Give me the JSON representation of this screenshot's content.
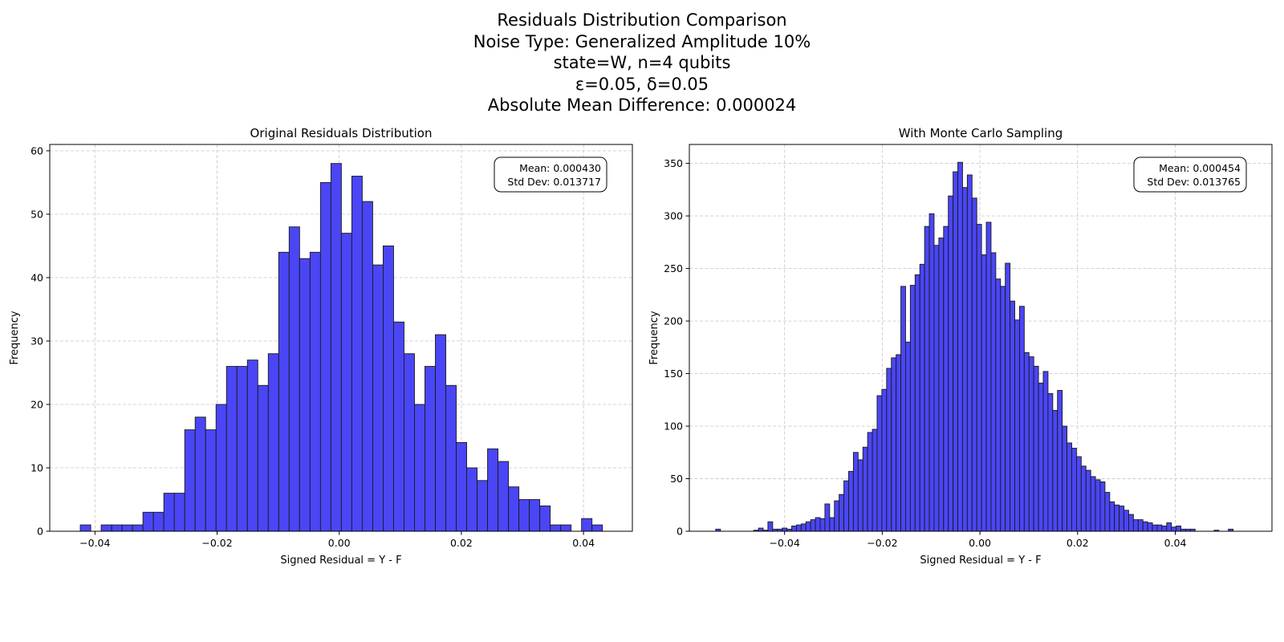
{
  "figure": {
    "title_lines": [
      "Residuals Distribution Comparison",
      "Noise Type: Generalized Amplitude 10%",
      "state=W, n=4 qubits",
      "ε=0.05, δ=0.05",
      "Absolute Mean Difference: 0.000024"
    ],
    "colors": {
      "bar_fill": "#4a46f5",
      "bar_edge": "#1a1a1a",
      "grid": "#cccccc"
    }
  },
  "chart_data": [
    {
      "type": "bar",
      "title": "Original Residuals Distribution",
      "xlabel": "Signed Residual = Y - F",
      "ylabel": "Frequency",
      "xlim": [
        -0.0474,
        0.048
      ],
      "ylim": [
        0,
        61
      ],
      "xticks": [
        -0.04,
        -0.02,
        0.0,
        0.02,
        0.04
      ],
      "xtick_labels": [
        "−0.04",
        "−0.02",
        "0.00",
        "0.02",
        "0.04"
      ],
      "yticks": [
        0,
        10,
        20,
        30,
        40,
        50,
        60
      ],
      "ytick_labels": [
        "0",
        "10",
        "20",
        "30",
        "40",
        "50",
        "60"
      ],
      "grid": true,
      "bin_start": -0.0424,
      "bin_width": 0.00171,
      "values": [
        1,
        0,
        1,
        1,
        1,
        1,
        3,
        3,
        6,
        6,
        16,
        18,
        16,
        20,
        26,
        26,
        27,
        23,
        28,
        44,
        48,
        43,
        44,
        55,
        58,
        47,
        56,
        52,
        42,
        45,
        33,
        28,
        20,
        26,
        31,
        23,
        14,
        10,
        8,
        13,
        11,
        7,
        5,
        5,
        4,
        1,
        1,
        0,
        2,
        1
      ],
      "annotation": {
        "mean": "Mean: 0.000430",
        "std": "Std Dev: 0.013717",
        "position": "top-right"
      }
    },
    {
      "type": "bar",
      "title": "With Monte Carlo Sampling",
      "xlabel": "Signed Residual = Y - F",
      "ylabel": "Frequency",
      "xlim": [
        -0.0595,
        0.0598
      ],
      "ylim": [
        0,
        368
      ],
      "xticks": [
        -0.04,
        -0.02,
        0.0,
        0.02,
        0.04
      ],
      "xtick_labels": [
        "−0.04",
        "−0.02",
        "0.00",
        "0.02",
        "0.04"
      ],
      "yticks": [
        0,
        50,
        100,
        150,
        200,
        250,
        300,
        350
      ],
      "ytick_labels": [
        "0",
        "50",
        "100",
        "150",
        "200",
        "250",
        "300",
        "350"
      ],
      "grid": true,
      "bin_start": -0.0541,
      "bin_width": 0.000972,
      "values": [
        2,
        0,
        0,
        0,
        0,
        0,
        0,
        0,
        1,
        3,
        1,
        9,
        2,
        2,
        3,
        2,
        5,
        6,
        7,
        9,
        11,
        13,
        12,
        26,
        13,
        29,
        35,
        48,
        57,
        75,
        68,
        80,
        94,
        97,
        129,
        135,
        155,
        165,
        168,
        233,
        180,
        234,
        244,
        254,
        290,
        302,
        272,
        279,
        290,
        319,
        342,
        351,
        327,
        339,
        317,
        292,
        263,
        294,
        265,
        240,
        233,
        255,
        219,
        201,
        214,
        170,
        166,
        157,
        141,
        152,
        131,
        115,
        134,
        100,
        84,
        79,
        71,
        62,
        58,
        52,
        49,
        47,
        37,
        28,
        25,
        24,
        20,
        16,
        11,
        11,
        9,
        8,
        6,
        6,
        5,
        8,
        4,
        5,
        2,
        2,
        2,
        0,
        0,
        0,
        0,
        1,
        0,
        0,
        2
      ],
      "annotation": {
        "mean": "Mean: 0.000454",
        "std": "Std Dev: 0.013765",
        "position": "top-right"
      }
    }
  ]
}
